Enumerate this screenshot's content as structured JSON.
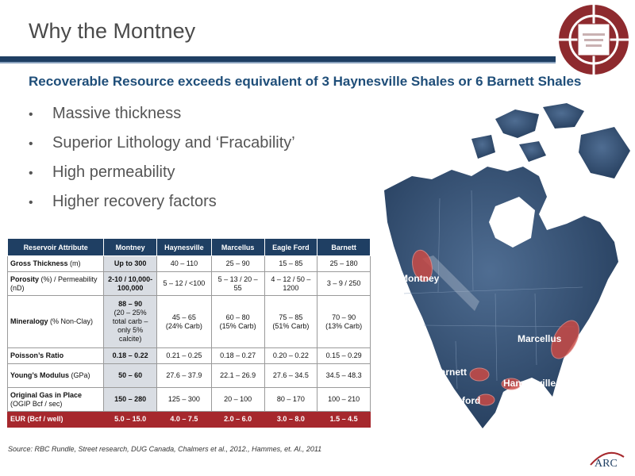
{
  "slide": {
    "title": "Why the Montney",
    "subtitle": "Recoverable Resource exceeds equivalent of 3 Haynesville Shales or 6 Barnett Shales"
  },
  "bullets": [
    "Massive thickness",
    "Superior Lithology and ‘Fracability’",
    "High permeability",
    "Higher recovery factors"
  ],
  "table": {
    "headers": [
      "Reservoir Attribute",
      "Montney",
      "Haynesville",
      "Marcellus",
      "Eagle Ford",
      "Barnett"
    ],
    "rows": [
      {
        "attr_bold": "Gross Thickness",
        "attr_rest": " (m)",
        "values": [
          "Up to 300",
          "40 – 110",
          "25 – 90",
          "15 – 85",
          "25 – 180"
        ]
      },
      {
        "attr_bold": "Porosity",
        "attr_rest": " (%) / Permeability (nD)",
        "values": [
          "2-10 / 10,000-100,000",
          "5 – 12 / <100",
          "5 – 13 / 20 – 55",
          "4 – 12 / 50 – 1200",
          "3 – 9 / 250"
        ]
      },
      {
        "attr_bold": "Mineralogy",
        "attr_rest": " (% Non-Clay)",
        "values": [
          "88 – 90",
          "45 – 65",
          "60 – 80",
          "75 – 85",
          "70 – 90"
        ],
        "subvalues": [
          "(20 – 25% total carb – only 5% calcite)",
          "(24% Carb)",
          "(15% Carb)",
          "(51% Carb)",
          "(13% Carb)"
        ]
      },
      {
        "attr_bold": "Poisson’s Ratio",
        "attr_rest": "",
        "values": [
          "0.18 – 0.22",
          "0.21 – 0.25",
          "0.18 – 0.27",
          "0.20 – 0.22",
          "0.15 – 0.29"
        ]
      },
      {
        "attr_bold": "Young’s Modulus",
        "attr_rest": " (GPa)",
        "values": [
          "50 – 60",
          "27.6 – 37.9",
          "22.1 – 26.9",
          "27.6 – 34.5",
          "34.5 – 48.3"
        ]
      },
      {
        "attr_bold": "Original Gas in Place",
        "attr_rest": " (OGIP Bcf / sec)",
        "values": [
          "150 – 280",
          "125 – 300",
          "20 – 100",
          "80 – 170",
          "100 – 210"
        ]
      },
      {
        "attr_bold": "EUR (Bcf / well)",
        "attr_rest": "",
        "values": [
          "5.0 – 15.0",
          "4.0 – 7.5",
          "2.0 – 6.0",
          "3.0 – 8.0",
          "1.5 – 4.5"
        ]
      }
    ]
  },
  "map": {
    "labels": {
      "montney": "Montney",
      "marcellus": "Marcellus",
      "barnett": "Barnett",
      "haynesville": "Hanyesville",
      "eagleford": "Eagleford"
    }
  },
  "source": "Source:  RBC Rundle, Street research, DUG Canada, Chalmers et al., 2012., Hammes, et. Al., 2011",
  "logos": {
    "company": "ARC"
  },
  "colors": {
    "navy": "#1f3f63",
    "subtitle_blue": "#1f4e79",
    "accent_red": "#a6282d"
  }
}
